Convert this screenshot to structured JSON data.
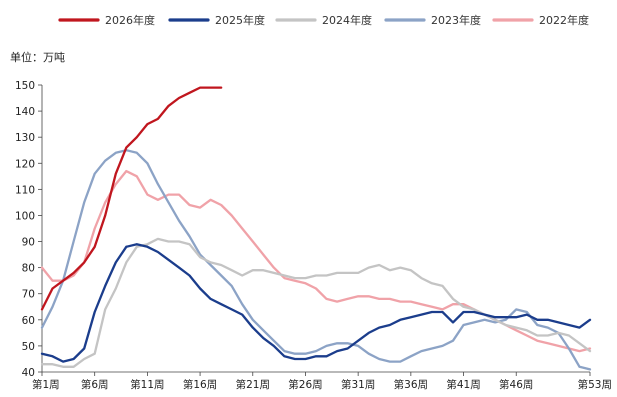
{
  "chart_data": {
    "type": "line",
    "unit_label": "单位：万吨",
    "ylim": [
      40,
      150
    ],
    "yticks": [
      40,
      50,
      60,
      70,
      80,
      90,
      100,
      110,
      120,
      130,
      140,
      150
    ],
    "xlim": [
      1,
      53
    ],
    "xticks": [
      {
        "week": 1,
        "label": "第1周"
      },
      {
        "week": 6,
        "label": "第6周"
      },
      {
        "week": 11,
        "label": "第11周"
      },
      {
        "week": 16,
        "label": "第16周"
      },
      {
        "week": 21,
        "label": "第21周"
      },
      {
        "week": 26,
        "label": "第26周"
      },
      {
        "week": 31,
        "label": "第31周"
      },
      {
        "week": 36,
        "label": "第36周"
      },
      {
        "week": 41,
        "label": "第41周"
      },
      {
        "week": 46,
        "label": "第46周"
      },
      {
        "week": 53,
        "label": "第53周"
      }
    ],
    "grid": false,
    "legend_position": "top",
    "series": [
      {
        "name": "2026年度",
        "color": "#C0161E",
        "x": [
          1,
          2,
          3,
          4,
          5,
          6,
          7,
          8,
          9,
          10,
          11,
          12,
          13,
          14,
          15,
          16,
          17,
          18
        ],
        "y": [
          64,
          72,
          75,
          78,
          82,
          88,
          100,
          116,
          126,
          130,
          135,
          137,
          142,
          145,
          147,
          149,
          149,
          149
        ]
      },
      {
        "name": "2025年度",
        "color": "#1B3D8C",
        "x": [
          1,
          2,
          3,
          4,
          5,
          6,
          7,
          8,
          9,
          10,
          11,
          12,
          13,
          14,
          15,
          16,
          17,
          18,
          19,
          20,
          21,
          22,
          23,
          24,
          25,
          26,
          27,
          28,
          29,
          30,
          31,
          32,
          33,
          34,
          35,
          36,
          37,
          38,
          39,
          40,
          41,
          42,
          43,
          44,
          45,
          46,
          47,
          48,
          49,
          50,
          51,
          52,
          53
        ],
        "y": [
          47,
          46,
          44,
          45,
          49,
          63,
          73,
          82,
          88,
          89,
          88,
          86,
          83,
          80,
          77,
          72,
          68,
          66,
          64,
          62,
          57,
          53,
          50,
          46,
          45,
          45,
          46,
          46,
          48,
          49,
          52,
          55,
          57,
          58,
          60,
          61,
          62,
          63,
          63,
          59,
          63,
          63,
          62,
          61,
          61,
          61,
          62,
          60,
          60,
          59,
          58,
          57,
          60
        ]
      },
      {
        "name": "2024年度",
        "color": "#C4C4C4",
        "x": [
          1,
          2,
          3,
          4,
          5,
          6,
          7,
          8,
          9,
          10,
          11,
          12,
          13,
          14,
          15,
          16,
          17,
          18,
          19,
          20,
          21,
          22,
          23,
          24,
          25,
          26,
          27,
          28,
          29,
          30,
          31,
          32,
          33,
          34,
          35,
          36,
          37,
          38,
          39,
          40,
          41,
          42,
          43,
          44,
          45,
          46,
          47,
          48,
          49,
          50,
          51,
          52,
          53
        ],
        "y": [
          43,
          43,
          42,
          42,
          45,
          47,
          64,
          72,
          82,
          88,
          89,
          91,
          90,
          90,
          89,
          84,
          82,
          81,
          79,
          77,
          79,
          79,
          78,
          77,
          76,
          76,
          77,
          77,
          78,
          78,
          78,
          80,
          81,
          79,
          80,
          79,
          76,
          74,
          73,
          68,
          65,
          64,
          62,
          60,
          58,
          57,
          56,
          54,
          54,
          55,
          54,
          51,
          48
        ]
      },
      {
        "name": "2023年度",
        "color": "#8CA3C6",
        "x": [
          1,
          2,
          3,
          4,
          5,
          6,
          7,
          8,
          9,
          10,
          11,
          12,
          13,
          14,
          15,
          16,
          17,
          18,
          19,
          20,
          21,
          22,
          23,
          24,
          25,
          26,
          27,
          28,
          29,
          30,
          31,
          32,
          33,
          34,
          35,
          36,
          37,
          38,
          39,
          40,
          41,
          42,
          43,
          44,
          45,
          46,
          47,
          48,
          49,
          50,
          51,
          52,
          53
        ],
        "y": [
          57,
          65,
          75,
          90,
          105,
          116,
          121,
          124,
          125,
          124,
          120,
          112,
          105,
          98,
          92,
          85,
          81,
          77,
          73,
          66,
          60,
          56,
          52,
          48,
          47,
          47,
          48,
          50,
          51,
          51,
          50,
          47,
          45,
          44,
          44,
          46,
          48,
          49,
          50,
          52,
          58,
          59,
          60,
          59,
          60,
          64,
          63,
          58,
          57,
          55,
          49,
          42,
          41
        ]
      },
      {
        "name": "2022年度",
        "color": "#F0A2A8",
        "x": [
          1,
          2,
          3,
          4,
          5,
          6,
          7,
          8,
          9,
          10,
          11,
          12,
          13,
          14,
          15,
          16,
          17,
          18,
          19,
          20,
          21,
          22,
          23,
          24,
          25,
          26,
          27,
          28,
          29,
          30,
          31,
          32,
          33,
          34,
          35,
          36,
          37,
          38,
          39,
          40,
          41,
          42,
          43,
          44,
          45,
          46,
          47,
          48,
          49,
          50,
          51,
          52,
          53
        ],
        "y": [
          80,
          75,
          75,
          77,
          82,
          95,
          105,
          112,
          117,
          115,
          108,
          106,
          108,
          108,
          104,
          103,
          106,
          104,
          100,
          95,
          90,
          85,
          80,
          76,
          75,
          74,
          72,
          68,
          67,
          68,
          69,
          69,
          68,
          68,
          67,
          67,
          66,
          65,
          64,
          66,
          66,
          64,
          62,
          60,
          58,
          56,
          54,
          52,
          51,
          50,
          49,
          48,
          49
        ]
      }
    ]
  }
}
